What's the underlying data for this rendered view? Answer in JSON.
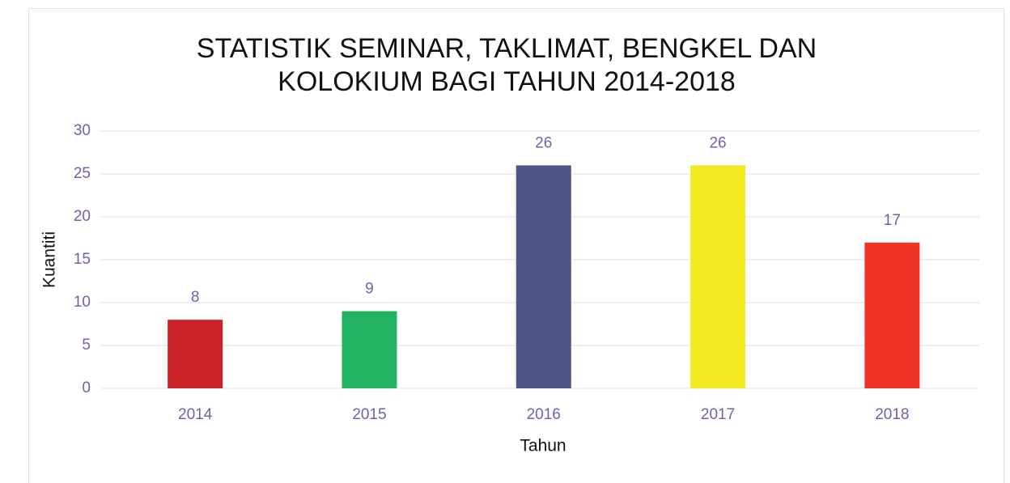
{
  "chart_data": {
    "type": "bar",
    "title": [
      "STATISTIK SEMINAR, TAKLIMAT, BENGKEL DAN",
      "KOLOKIUM BAGI TAHUN 2014-2018"
    ],
    "x_label": "Tahun",
    "y_label": "Kuantiti",
    "categories": [
      "2014",
      "2015",
      "2016",
      "2017",
      "2018"
    ],
    "values": [
      8,
      9,
      26,
      26,
      17
    ],
    "colors": [
      "#cc2129",
      "#24b362",
      "#4e5588",
      "#f3eb1f",
      "#ee3423"
    ],
    "ylim": [
      0,
      30
    ],
    "yticks": [
      0,
      5,
      10,
      15,
      20,
      25,
      30
    ],
    "grid": true
  }
}
